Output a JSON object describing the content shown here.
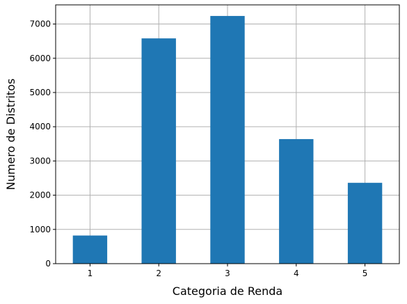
{
  "chart_data": {
    "type": "bar",
    "title": "",
    "xlabel": "Categoria de Renda",
    "ylabel": "Numero de Distritos",
    "categories": [
      "1",
      "2",
      "3",
      "4",
      "5"
    ],
    "values": [
      822,
      6581,
      7236,
      3639,
      2362
    ],
    "ylim": [
      0,
      7560
    ],
    "yticks": [
      0,
      1000,
      2000,
      3000,
      4000,
      5000,
      6000,
      7000
    ],
    "grid": true,
    "bar_color": "#1f77b4"
  }
}
